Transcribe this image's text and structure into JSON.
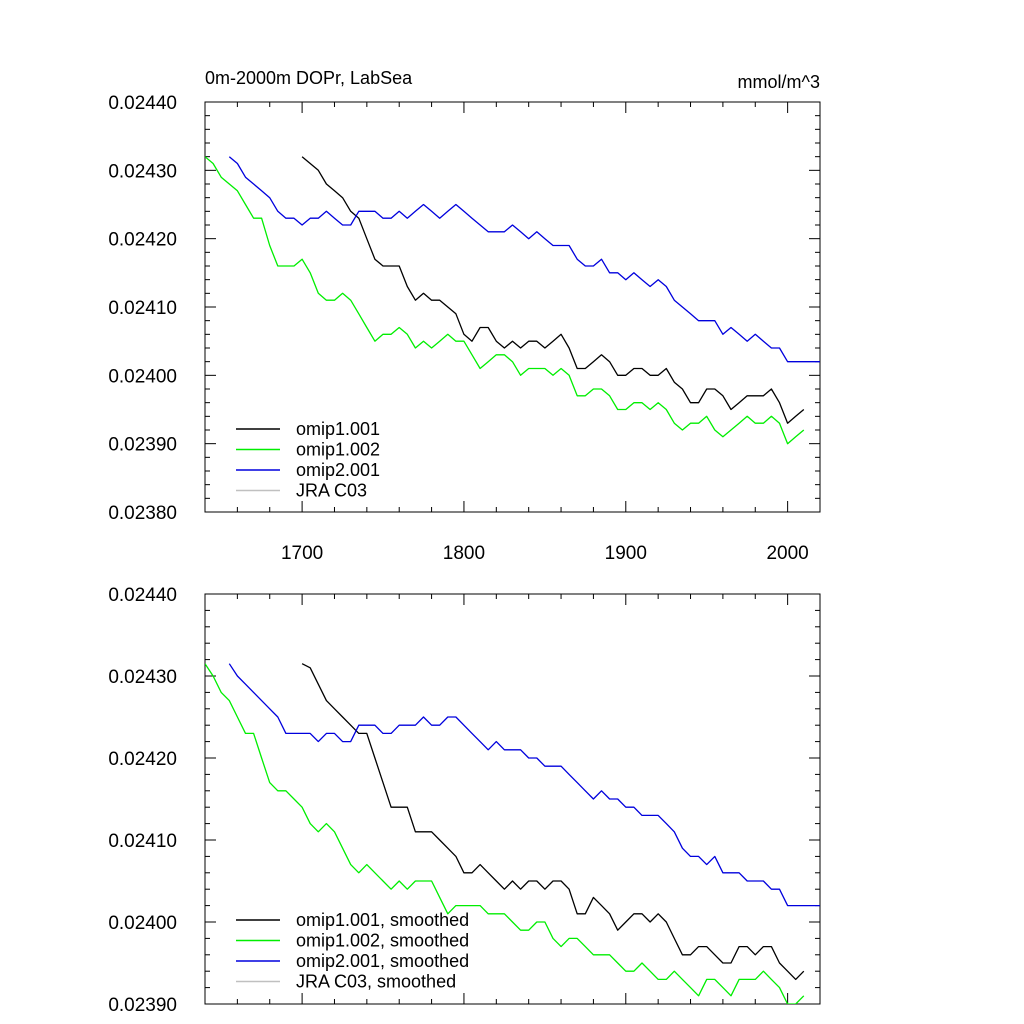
{
  "chart_data": [
    {
      "type": "line",
      "title": "0m-2000m DOPr, LabSea",
      "units": "mmol/m^3",
      "xlabel": "",
      "ylabel": "",
      "xlim": [
        1640,
        2020
      ],
      "ylim": [
        0.0238,
        0.0244
      ],
      "x_ticks": [
        1700,
        1800,
        1900,
        2000
      ],
      "x_tick_labels": [
        "1700",
        "1800",
        "1900",
        "2000"
      ],
      "y_ticks": [
        0.0238,
        0.0239,
        0.024,
        0.0241,
        0.0242,
        0.0243,
        0.0244
      ],
      "y_tick_labels": [
        "0.02380",
        "0.02390",
        "0.02400",
        "0.02410",
        "0.02420",
        "0.02430",
        "0.02440"
      ],
      "legend": "bottom-left",
      "grid": false,
      "series": [
        {
          "name": "omip1.001",
          "color": "#000000",
          "x": [
            1700,
            1705,
            1710,
            1715,
            1720,
            1725,
            1730,
            1735,
            1740,
            1745,
            1750,
            1755,
            1760,
            1765,
            1770,
            1775,
            1780,
            1785,
            1790,
            1795,
            1800,
            1805,
            1810,
            1815,
            1820,
            1825,
            1830,
            1835,
            1840,
            1845,
            1850,
            1855,
            1860,
            1865,
            1870,
            1875,
            1880,
            1885,
            1890,
            1895,
            1900,
            1905,
            1910,
            1915,
            1920,
            1925,
            1930,
            1935,
            1940,
            1945,
            1950,
            1955,
            1960,
            1965,
            1970,
            1975,
            1980,
            1985,
            1990,
            1995,
            2000,
            2005,
            2010
          ],
          "y": [
            0.02432,
            0.02431,
            0.0243,
            0.02428,
            0.02427,
            0.02426,
            0.02424,
            0.02423,
            0.0242,
            0.02417,
            0.02416,
            0.02416,
            0.02416,
            0.02413,
            0.02411,
            0.02412,
            0.02411,
            0.02411,
            0.0241,
            0.02409,
            0.02406,
            0.02405,
            0.02407,
            0.02407,
            0.02405,
            0.02404,
            0.02405,
            0.02404,
            0.02405,
            0.02405,
            0.02404,
            0.02405,
            0.02406,
            0.02404,
            0.02401,
            0.02401,
            0.02402,
            0.02403,
            0.02402,
            0.024,
            0.024,
            0.02401,
            0.02401,
            0.024,
            0.024,
            0.02401,
            0.02399,
            0.02398,
            0.02396,
            0.02396,
            0.02398,
            0.02398,
            0.02397,
            0.02395,
            0.02396,
            0.02397,
            0.02397,
            0.02397,
            0.02398,
            0.02396,
            0.02393,
            0.02394,
            0.02395
          ]
        },
        {
          "name": "omip1.002",
          "color": "#00ee00",
          "x": [
            1640,
            1645,
            1650,
            1655,
            1660,
            1665,
            1670,
            1675,
            1680,
            1685,
            1690,
            1695,
            1700,
            1705,
            1710,
            1715,
            1720,
            1725,
            1730,
            1735,
            1740,
            1745,
            1750,
            1755,
            1760,
            1765,
            1770,
            1775,
            1780,
            1785,
            1790,
            1795,
            1800,
            1805,
            1810,
            1815,
            1820,
            1825,
            1830,
            1835,
            1840,
            1845,
            1850,
            1855,
            1860,
            1865,
            1870,
            1875,
            1880,
            1885,
            1890,
            1895,
            1900,
            1905,
            1910,
            1915,
            1920,
            1925,
            1930,
            1935,
            1940,
            1945,
            1950,
            1955,
            1960,
            1965,
            1970,
            1975,
            1980,
            1985,
            1990,
            1995,
            2000,
            2005,
            2010
          ],
          "y": [
            0.02432,
            0.02431,
            0.02429,
            0.02428,
            0.02427,
            0.02425,
            0.02423,
            0.02423,
            0.02419,
            0.02416,
            0.02416,
            0.02416,
            0.02417,
            0.02415,
            0.02412,
            0.02411,
            0.02411,
            0.02412,
            0.02411,
            0.02409,
            0.02407,
            0.02405,
            0.02406,
            0.02406,
            0.02407,
            0.02406,
            0.02404,
            0.02405,
            0.02404,
            0.02405,
            0.02406,
            0.02405,
            0.02405,
            0.02403,
            0.02401,
            0.02402,
            0.02403,
            0.02403,
            0.02402,
            0.024,
            0.02401,
            0.02401,
            0.02401,
            0.024,
            0.02401,
            0.024,
            0.02397,
            0.02397,
            0.02398,
            0.02398,
            0.02397,
            0.02395,
            0.02395,
            0.02396,
            0.02396,
            0.02395,
            0.02396,
            0.02395,
            0.02393,
            0.02392,
            0.02393,
            0.02393,
            0.02394,
            0.02392,
            0.02391,
            0.02392,
            0.02393,
            0.02394,
            0.02393,
            0.02393,
            0.02394,
            0.02393,
            0.0239,
            0.02391,
            0.02392
          ]
        },
        {
          "name": "omip2.001",
          "color": "#0000dd",
          "x": [
            1655,
            1660,
            1665,
            1670,
            1675,
            1680,
            1685,
            1690,
            1695,
            1700,
            1705,
            1710,
            1715,
            1720,
            1725,
            1730,
            1735,
            1740,
            1745,
            1750,
            1755,
            1760,
            1765,
            1770,
            1775,
            1780,
            1785,
            1790,
            1795,
            1800,
            1805,
            1810,
            1815,
            1820,
            1825,
            1830,
            1835,
            1840,
            1845,
            1850,
            1855,
            1860,
            1865,
            1870,
            1875,
            1880,
            1885,
            1890,
            1895,
            1900,
            1905,
            1910,
            1915,
            1920,
            1925,
            1930,
            1935,
            1940,
            1945,
            1950,
            1955,
            1960,
            1965,
            1970,
            1975,
            1980,
            1985,
            1990,
            1995,
            2000,
            2005,
            2010,
            2015,
            2020
          ],
          "y": [
            0.02432,
            0.02431,
            0.02429,
            0.02428,
            0.02427,
            0.02426,
            0.02424,
            0.02423,
            0.02423,
            0.02422,
            0.02423,
            0.02423,
            0.02424,
            0.02423,
            0.02422,
            0.02422,
            0.02424,
            0.02424,
            0.02424,
            0.02423,
            0.02423,
            0.02424,
            0.02423,
            0.02424,
            0.02425,
            0.02424,
            0.02423,
            0.02424,
            0.02425,
            0.02424,
            0.02423,
            0.02422,
            0.02421,
            0.02421,
            0.02421,
            0.02422,
            0.02421,
            0.0242,
            0.02421,
            0.0242,
            0.02419,
            0.02419,
            0.02419,
            0.02417,
            0.02416,
            0.02416,
            0.02417,
            0.02415,
            0.02415,
            0.02414,
            0.02415,
            0.02414,
            0.02413,
            0.02414,
            0.02413,
            0.02411,
            0.0241,
            0.02409,
            0.02408,
            0.02408,
            0.02408,
            0.02406,
            0.02407,
            0.02406,
            0.02405,
            0.02406,
            0.02405,
            0.02404,
            0.02404,
            0.02402,
            0.02402,
            0.02402,
            0.02402,
            0.02402
          ]
        },
        {
          "name": "JRA C03",
          "color": "#c0c0c0",
          "x": [],
          "y": []
        }
      ]
    },
    {
      "type": "line",
      "title": "",
      "xlabel": "",
      "ylabel": "",
      "xlim": [
        1640,
        2020
      ],
      "ylim": [
        0.0239,
        0.0244
      ],
      "x_ticks": [
        1700,
        1800,
        1900,
        2000
      ],
      "y_ticks": [
        0.0239,
        0.024,
        0.0241,
        0.0242,
        0.0243,
        0.0244
      ],
      "y_tick_labels": [
        "0.02390",
        "0.02400",
        "0.02410",
        "0.02420",
        "0.02430",
        "0.02440"
      ],
      "legend": "bottom-left",
      "grid": false,
      "series": [
        {
          "name": "omip1.001, smoothed",
          "color": "#000000",
          "x": [
            1700,
            1705,
            1710,
            1715,
            1720,
            1725,
            1730,
            1735,
            1740,
            1745,
            1750,
            1755,
            1760,
            1765,
            1770,
            1775,
            1780,
            1785,
            1790,
            1795,
            1800,
            1805,
            1810,
            1815,
            1820,
            1825,
            1830,
            1835,
            1840,
            1845,
            1850,
            1855,
            1860,
            1865,
            1870,
            1875,
            1880,
            1885,
            1890,
            1895,
            1900,
            1905,
            1910,
            1915,
            1920,
            1925,
            1930,
            1935,
            1940,
            1945,
            1950,
            1955,
            1960,
            1965,
            1970,
            1975,
            1980,
            1985,
            1990,
            1995,
            2000,
            2005,
            2010
          ],
          "y": [
            0.024315,
            0.02431,
            0.02429,
            0.02427,
            0.02426,
            0.02425,
            0.02424,
            0.02423,
            0.02423,
            0.0242,
            0.02417,
            0.02414,
            0.02414,
            0.02414,
            0.02411,
            0.02411,
            0.02411,
            0.0241,
            0.02409,
            0.02408,
            0.02406,
            0.02406,
            0.02407,
            0.02406,
            0.02405,
            0.02404,
            0.02405,
            0.02404,
            0.02405,
            0.02405,
            0.02404,
            0.02405,
            0.02405,
            0.02404,
            0.02401,
            0.02401,
            0.02403,
            0.02402,
            0.02401,
            0.02399,
            0.024,
            0.02401,
            0.02401,
            0.024,
            0.02401,
            0.024,
            0.02398,
            0.02396,
            0.02396,
            0.02397,
            0.02397,
            0.02396,
            0.02395,
            0.02395,
            0.02397,
            0.02397,
            0.02396,
            0.02397,
            0.02397,
            0.02395,
            0.02394,
            0.02393,
            0.02394
          ]
        },
        {
          "name": "omip1.002, smoothed",
          "color": "#00ee00",
          "x": [
            1640,
            1645,
            1650,
            1655,
            1660,
            1665,
            1670,
            1675,
            1680,
            1685,
            1690,
            1695,
            1700,
            1705,
            1710,
            1715,
            1720,
            1725,
            1730,
            1735,
            1740,
            1745,
            1750,
            1755,
            1760,
            1765,
            1770,
            1775,
            1780,
            1785,
            1790,
            1795,
            1800,
            1805,
            1810,
            1815,
            1820,
            1825,
            1830,
            1835,
            1840,
            1845,
            1850,
            1855,
            1860,
            1865,
            1870,
            1875,
            1880,
            1885,
            1890,
            1895,
            1900,
            1905,
            1910,
            1915,
            1920,
            1925,
            1930,
            1935,
            1940,
            1945,
            1950,
            1955,
            1960,
            1965,
            1970,
            1975,
            1980,
            1985,
            1990,
            1995,
            2000,
            2005,
            2010
          ],
          "y": [
            0.024315,
            0.0243,
            0.02428,
            0.02427,
            0.02425,
            0.02423,
            0.02423,
            0.0242,
            0.02417,
            0.02416,
            0.02416,
            0.02415,
            0.02414,
            0.02412,
            0.02411,
            0.02412,
            0.02411,
            0.02409,
            0.02407,
            0.02406,
            0.02407,
            0.02406,
            0.02405,
            0.02404,
            0.02405,
            0.02404,
            0.02405,
            0.02405,
            0.02405,
            0.02403,
            0.02401,
            0.02402,
            0.02402,
            0.02402,
            0.02402,
            0.02401,
            0.02401,
            0.02401,
            0.024,
            0.02399,
            0.02399,
            0.024,
            0.024,
            0.02398,
            0.02397,
            0.02398,
            0.02398,
            0.02397,
            0.02396,
            0.02396,
            0.02396,
            0.02395,
            0.02394,
            0.02394,
            0.02395,
            0.02394,
            0.02393,
            0.02393,
            0.02394,
            0.02393,
            0.02392,
            0.02391,
            0.02393,
            0.02393,
            0.02392,
            0.02391,
            0.02393,
            0.02393,
            0.02393,
            0.02394,
            0.02393,
            0.02392,
            0.0239,
            0.0239,
            0.02391
          ]
        },
        {
          "name": "omip2.001, smoothed",
          "color": "#0000dd",
          "x": [
            1655,
            1660,
            1665,
            1670,
            1675,
            1680,
            1685,
            1690,
            1695,
            1700,
            1705,
            1710,
            1715,
            1720,
            1725,
            1730,
            1735,
            1740,
            1745,
            1750,
            1755,
            1760,
            1765,
            1770,
            1775,
            1780,
            1785,
            1790,
            1795,
            1800,
            1805,
            1810,
            1815,
            1820,
            1825,
            1830,
            1835,
            1840,
            1845,
            1850,
            1855,
            1860,
            1865,
            1870,
            1875,
            1880,
            1885,
            1890,
            1895,
            1900,
            1905,
            1910,
            1915,
            1920,
            1925,
            1930,
            1935,
            1940,
            1945,
            1950,
            1955,
            1960,
            1965,
            1970,
            1975,
            1980,
            1985,
            1990,
            1995,
            2000,
            2005,
            2010,
            2015,
            2020
          ],
          "y": [
            0.024315,
            0.0243,
            0.02429,
            0.02428,
            0.02427,
            0.02426,
            0.02425,
            0.02423,
            0.02423,
            0.02423,
            0.02423,
            0.02422,
            0.02423,
            0.02423,
            0.02422,
            0.02422,
            0.02424,
            0.02424,
            0.02424,
            0.02423,
            0.02423,
            0.02424,
            0.02424,
            0.02424,
            0.02425,
            0.02424,
            0.02424,
            0.02425,
            0.02425,
            0.02424,
            0.02423,
            0.02422,
            0.02421,
            0.02422,
            0.02421,
            0.02421,
            0.02421,
            0.0242,
            0.0242,
            0.02419,
            0.02419,
            0.02419,
            0.02418,
            0.02417,
            0.02416,
            0.02415,
            0.02416,
            0.02415,
            0.02415,
            0.02414,
            0.02414,
            0.02413,
            0.02413,
            0.02413,
            0.02412,
            0.02411,
            0.02409,
            0.02408,
            0.02408,
            0.02407,
            0.02408,
            0.02406,
            0.02406,
            0.02406,
            0.02405,
            0.02405,
            0.02405,
            0.02404,
            0.02404,
            0.02402,
            0.02402,
            0.02402,
            0.02402,
            0.02402
          ]
        },
        {
          "name": "JRA C03, smoothed",
          "color": "#c0c0c0",
          "x": [],
          "y": []
        }
      ]
    }
  ]
}
